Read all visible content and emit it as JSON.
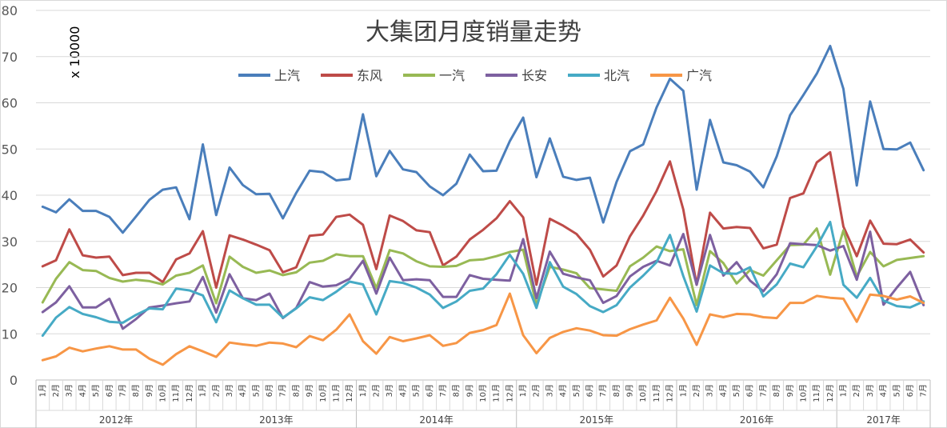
{
  "chart_data": {
    "type": "line",
    "title": "大集团月度销量走势",
    "unit_note": "x 10000",
    "ylim": [
      0,
      80
    ],
    "yticks": [
      0,
      10,
      20,
      30,
      40,
      50,
      60,
      70,
      80
    ],
    "grid": true,
    "legend_position": "top-center",
    "years": [
      {
        "label": "2012年",
        "months": 12
      },
      {
        "label": "2013年",
        "months": 12
      },
      {
        "label": "2014年",
        "months": 12
      },
      {
        "label": "2015年",
        "months": 12
      },
      {
        "label": "2016年",
        "months": 12
      },
      {
        "label": "2017年",
        "months": 7
      }
    ],
    "month_labels": [
      "1月",
      "2月",
      "3月",
      "4月",
      "5月",
      "6月",
      "7月",
      "8月",
      "9月",
      "10月",
      "11月",
      "12月"
    ],
    "series": [
      {
        "name": "上汽",
        "color": "#4a7ebb",
        "values": [
          37.5,
          36.3,
          39.1,
          36.6,
          36.6,
          35.3,
          31.9,
          35.4,
          39.0,
          41.2,
          41.7,
          34.8,
          51.0,
          35.7,
          46.0,
          42.2,
          40.2,
          40.3,
          35.0,
          40.5,
          45.3,
          45.0,
          43.2,
          43.5,
          57.5,
          44.1,
          49.6,
          45.6,
          45.0,
          41.9,
          40.0,
          42.5,
          48.8,
          45.2,
          45.3,
          51.7,
          56.8,
          43.9,
          52.3,
          44.0,
          43.3,
          43.8,
          34.1,
          42.9,
          49.5,
          51.0,
          59.0,
          65.2,
          62.6,
          41.2,
          56.3,
          47.1,
          46.5,
          45.1,
          41.7,
          48.4,
          57.3,
          61.7,
          66.3,
          72.3,
          63.0,
          42.1,
          60.3,
          50.0,
          49.9,
          51.4,
          45.4
        ]
      },
      {
        "name": "东风",
        "color": "#be4b48",
        "values": [
          24.6,
          25.9,
          32.6,
          27.0,
          26.5,
          26.7,
          22.7,
          23.2,
          23.2,
          21.2,
          26.1,
          27.4,
          32.2,
          20.0,
          31.3,
          30.4,
          29.3,
          28.1,
          23.3,
          24.4,
          31.2,
          31.5,
          35.3,
          35.8,
          33.6,
          24.0,
          35.6,
          34.4,
          32.4,
          32.0,
          24.8,
          26.7,
          30.4,
          32.5,
          35.0,
          38.7,
          35.2,
          20.6,
          34.9,
          33.4,
          31.6,
          28.2,
          22.4,
          24.8,
          31.1,
          35.6,
          40.9,
          47.3,
          36.9,
          20.6,
          36.2,
          32.8,
          33.1,
          32.9,
          28.5,
          29.3,
          39.4,
          40.4,
          47.1,
          49.3,
          33.2,
          26.8,
          34.5,
          29.5,
          29.4,
          30.4,
          27.6
        ]
      },
      {
        "name": "一汽",
        "color": "#98b954",
        "values": [
          16.8,
          21.9,
          25.5,
          23.8,
          23.6,
          22.1,
          21.3,
          21.7,
          21.4,
          20.7,
          22.6,
          23.2,
          24.8,
          16.6,
          26.7,
          24.5,
          23.2,
          23.7,
          22.7,
          23.3,
          25.4,
          25.8,
          27.2,
          26.8,
          26.8,
          19.9,
          28.1,
          27.4,
          25.7,
          24.6,
          24.5,
          24.7,
          25.9,
          26.1,
          26.8,
          27.7,
          28.2,
          16.3,
          24.5,
          23.9,
          23.1,
          19.9,
          19.6,
          19.3,
          24.6,
          26.5,
          28.9,
          27.9,
          28.3,
          16.2,
          27.9,
          25.3,
          20.9,
          23.8,
          22.6,
          25.9,
          29.2,
          29.3,
          32.8,
          22.8,
          32.4,
          22.4,
          27.7,
          24.6,
          26.0,
          26.4,
          26.8
        ]
      },
      {
        "name": "长安",
        "color": "#7d60a0",
        "values": [
          14.7,
          16.8,
          20.3,
          15.7,
          15.7,
          17.6,
          11.1,
          13.2,
          15.7,
          16.1,
          16.6,
          17.0,
          22.3,
          14.6,
          22.9,
          17.7,
          17.3,
          18.7,
          13.4,
          15.6,
          21.2,
          20.2,
          20.5,
          21.9,
          25.8,
          18.7,
          26.5,
          21.6,
          21.8,
          21.6,
          18.0,
          18.0,
          22.7,
          21.9,
          21.7,
          21.5,
          30.5,
          17.7,
          27.8,
          23.0,
          22.2,
          21.6,
          16.7,
          18.2,
          22.4,
          24.5,
          25.8,
          24.8,
          31.6,
          20.6,
          31.4,
          22.6,
          25.5,
          21.5,
          19.2,
          22.9,
          29.6,
          29.4,
          29.2,
          28.0,
          29.0,
          21.7,
          32.1,
          16.3,
          20.0,
          23.4,
          16.2
        ]
      },
      {
        "name": "北汽",
        "color": "#46aac5",
        "values": [
          9.6,
          13.5,
          15.8,
          14.3,
          13.6,
          12.6,
          12.4,
          14.1,
          15.5,
          15.3,
          19.8,
          19.4,
          18.3,
          12.5,
          19.4,
          17.7,
          16.3,
          16.3,
          13.5,
          15.5,
          17.9,
          17.3,
          19.1,
          21.3,
          20.7,
          14.2,
          21.4,
          21.0,
          20.0,
          18.5,
          15.6,
          17.0,
          19.3,
          19.8,
          22.9,
          27.1,
          23.0,
          15.6,
          25.5,
          20.2,
          18.6,
          16.0,
          14.7,
          16.2,
          20.0,
          22.6,
          25.5,
          31.4,
          22.5,
          14.8,
          24.8,
          23.1,
          23.0,
          24.4,
          18.1,
          20.7,
          25.2,
          24.4,
          28.9,
          34.2,
          20.6,
          17.8,
          22.1,
          17.2,
          16.0,
          15.7,
          17.0
        ]
      },
      {
        "name": "广汽",
        "color": "#f79646",
        "values": [
          4.3,
          5.1,
          7.0,
          6.2,
          6.8,
          7.3,
          6.6,
          6.6,
          4.6,
          3.3,
          5.6,
          7.3,
          6.2,
          5.0,
          8.1,
          7.7,
          7.4,
          8.1,
          7.9,
          7.1,
          9.5,
          8.6,
          10.9,
          14.2,
          8.4,
          5.7,
          9.3,
          8.4,
          9.0,
          9.7,
          7.4,
          8.0,
          10.2,
          10.8,
          11.9,
          18.7,
          9.7,
          5.8,
          9.1,
          10.4,
          11.2,
          10.7,
          9.7,
          9.6,
          11.0,
          12.0,
          12.9,
          17.8,
          13.3,
          7.6,
          14.2,
          13.6,
          14.3,
          14.2,
          13.6,
          13.4,
          16.7,
          16.7,
          18.2,
          17.8,
          17.6,
          12.6,
          18.5,
          18.2,
          17.4,
          18.1,
          16.7
        ]
      }
    ]
  }
}
